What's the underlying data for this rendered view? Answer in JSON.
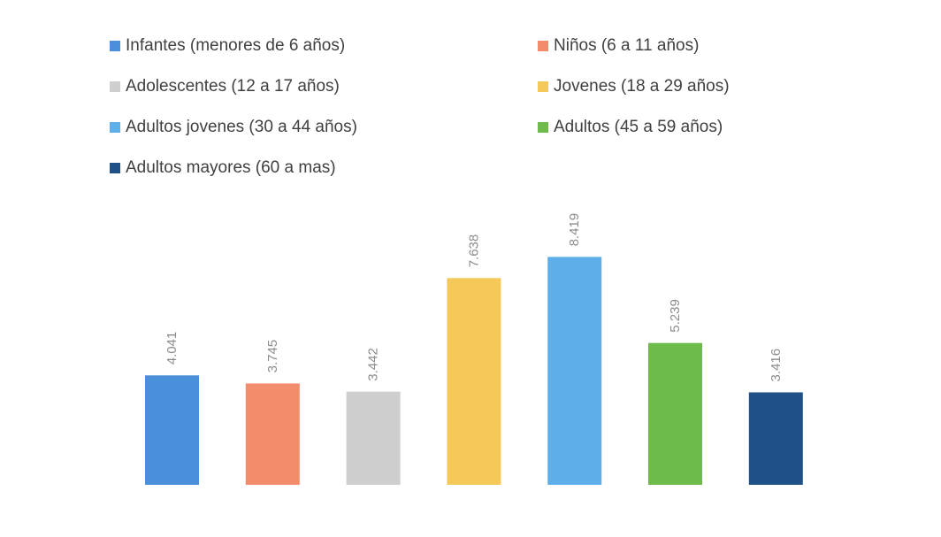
{
  "chart_data": {
    "type": "bar",
    "title": "",
    "xlabel": "",
    "ylabel": "",
    "ylim": [
      0,
      9
    ],
    "grid": false,
    "legend_position": "top",
    "categories": [
      "Infantes (menores de 6 años)",
      "Niños (6 a 11 años)",
      "Adolescentes (12 a 17 años)",
      "Jovenes (18 a 29 años)",
      "Adultos jovenes (30 a 44 años)",
      "Adultos (45 a 59 años)",
      "Adultos mayores (60 a mas)"
    ],
    "values": [
      4.041,
      3.745,
      3.442,
      7.638,
      8.419,
      5.239,
      3.416
    ],
    "value_labels": [
      "4.041",
      "3.745",
      "3.442",
      "7.638",
      "8.419",
      "5.239",
      "3.416"
    ],
    "colors": [
      "#4a8fd9",
      "#f28c6b",
      "#cfcfcf",
      "#f5c85a",
      "#5eaeea",
      "#6dbb4a",
      "#1f5188"
    ],
    "legend": [
      {
        "label": "Infantes (menores de 6 años)",
        "color": "#4a8fd9"
      },
      {
        "label": "Niños (6 a 11 años)",
        "color": "#f28c6b"
      },
      {
        "label": "Adolescentes (12 a 17 años)",
        "color": "#cfcfcf"
      },
      {
        "label": "Jovenes (18 a 29 años)",
        "color": "#f5c85a"
      },
      {
        "label": "Adultos jovenes (30 a 44 años)",
        "color": "#5eaeea"
      },
      {
        "label": "Adultos (45 a 59 años)",
        "color": "#6dbb4a"
      },
      {
        "label": "Adultos mayores (60 a mas)",
        "color": "#1f5188"
      }
    ]
  }
}
